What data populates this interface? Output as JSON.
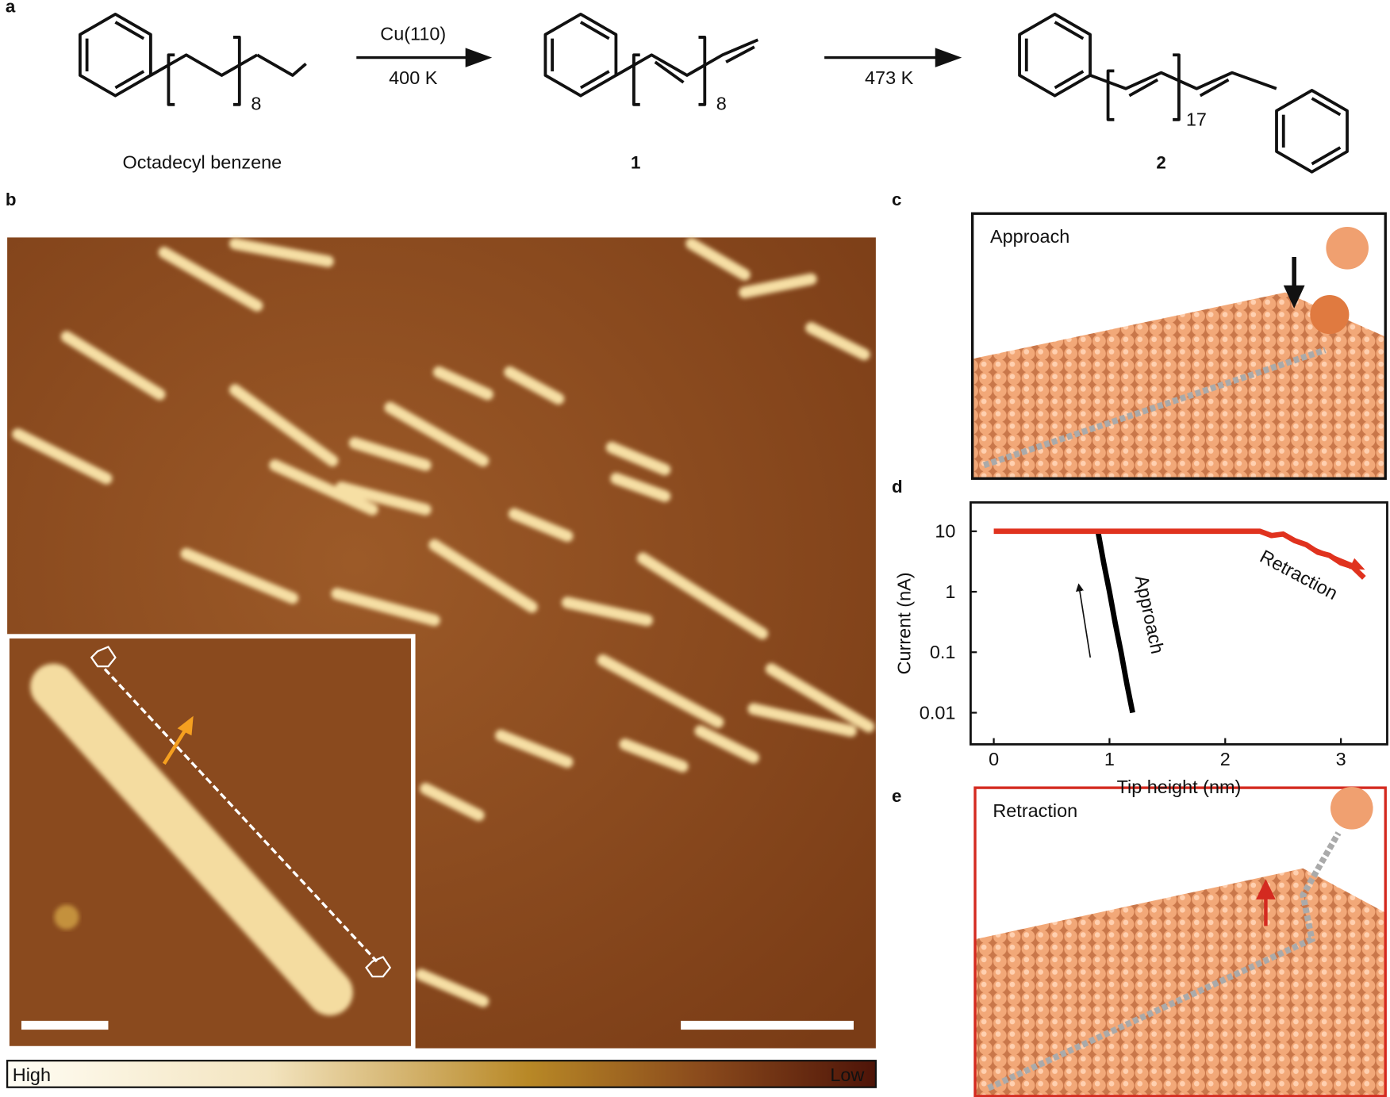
{
  "panel_labels": [
    "a",
    "b",
    "c",
    "d",
    "e"
  ],
  "scheme": {
    "reactant": "Octadecyl benzene",
    "product1": "1",
    "product2": "2",
    "step1_top": "Cu(110)",
    "step1_bottom": "400 K",
    "step2_bottom": "473 K",
    "subscripts": [
      "8",
      "8",
      "17"
    ]
  },
  "colorbar": {
    "high": "High",
    "low": "Low"
  },
  "panel_c": {
    "label": "Approach"
  },
  "panel_e": {
    "label": "Retraction"
  },
  "chart_data": {
    "type": "line",
    "xlabel": "Tip height (nm)",
    "ylabel": "Current (nA)",
    "log_y": true,
    "grid": false,
    "xlim": [
      -0.2,
      3.4
    ],
    "xticks": [
      0,
      1,
      2,
      3
    ],
    "ylim": [
      0.003,
      30
    ],
    "yticks": [
      0.01,
      0.1,
      1,
      10
    ],
    "series": [
      {
        "name": "Approach",
        "color": "#000000",
        "x": [
          0.9,
          0.95,
          1.0,
          1.05,
          1.1,
          1.15,
          1.2
        ],
        "values": [
          10,
          3,
          1,
          0.3,
          0.1,
          0.03,
          0.01
        ]
      },
      {
        "name": "Retraction",
        "color": "#e0321e",
        "x": [
          0,
          2.3,
          2.4,
          2.5,
          2.6,
          2.7,
          2.8,
          2.9,
          3.0,
          3.1,
          3.2
        ],
        "values": [
          10,
          10,
          8.5,
          9,
          7,
          6,
          4.5,
          4,
          3,
          2.6,
          1.7
        ]
      }
    ]
  }
}
